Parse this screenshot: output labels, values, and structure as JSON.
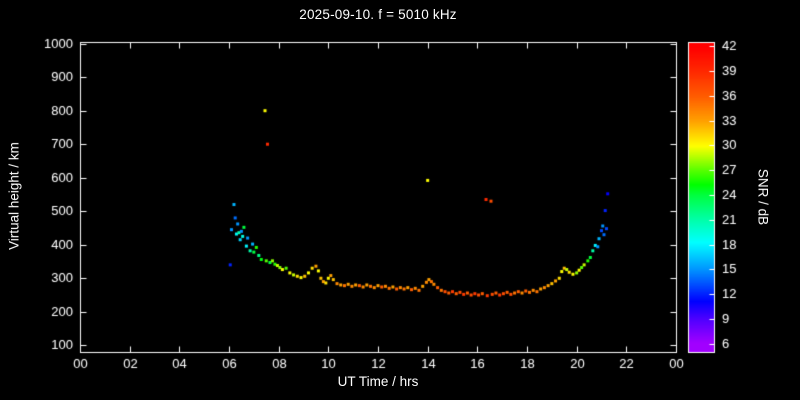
{
  "chart": {
    "title": "2025-09-10. f = 5010 kHz",
    "colors": {
      "background": "#000000",
      "foreground": "#ffffff"
    }
  },
  "chart_data": {
    "type": "scatter",
    "title": "2025-09-10. f = 5010 kHz",
    "xlabel": "UT Time / hrs",
    "ylabel": "Virtual height / km",
    "colorbar_label": "SNR / dB",
    "x_axis": {
      "min": 0,
      "max": 24,
      "tick_values": [
        0,
        2,
        4,
        6,
        8,
        10,
        12,
        14,
        16,
        18,
        20,
        22,
        24
      ],
      "tick_labels": [
        "00",
        "02",
        "04",
        "06",
        "08",
        "10",
        "12",
        "14",
        "16",
        "18",
        "20",
        "22",
        "00"
      ]
    },
    "y_axis": {
      "min": 80,
      "max": 1005,
      "tick_values": [
        100,
        200,
        300,
        400,
        500,
        600,
        700,
        800,
        900,
        1000
      ],
      "tick_labels": [
        "100",
        "200",
        "300",
        "400",
        "500",
        "600",
        "700",
        "800",
        "900",
        "1000"
      ]
    },
    "colorbar": {
      "min": 5,
      "max": 42.5,
      "tick_values": [
        6,
        9,
        12,
        15,
        18,
        21,
        24,
        27,
        30,
        33,
        36,
        39,
        42
      ],
      "tick_labels": [
        "6",
        "9",
        "12",
        "15",
        "18",
        "21",
        "24",
        "27",
        "30",
        "33",
        "36",
        "39",
        "42"
      ]
    },
    "colormap_hue_anchors": [
      [
        6,
        278
      ],
      [
        9,
        258
      ],
      [
        12,
        232
      ],
      [
        15,
        205
      ],
      [
        18,
        182
      ],
      [
        21,
        160
      ],
      [
        24,
        135
      ],
      [
        27,
        100
      ],
      [
        30,
        60
      ],
      [
        33,
        38
      ],
      [
        36,
        22
      ],
      [
        39,
        10
      ],
      [
        42,
        0
      ]
    ],
    "marker_size": 3,
    "points_format": [
      "ut_hours",
      "virtual_height_km",
      "snr_db"
    ],
    "points": [
      [
        6.05,
        340,
        12
      ],
      [
        6.1,
        445,
        15
      ],
      [
        6.2,
        520,
        16
      ],
      [
        6.25,
        480,
        14
      ],
      [
        6.3,
        432,
        18
      ],
      [
        6.35,
        462,
        15
      ],
      [
        6.4,
        436,
        21
      ],
      [
        6.45,
        415,
        17
      ],
      [
        6.5,
        440,
        15
      ],
      [
        6.55,
        425,
        19
      ],
      [
        6.6,
        452,
        24
      ],
      [
        6.7,
        396,
        18
      ],
      [
        6.75,
        420,
        15
      ],
      [
        6.85,
        382,
        21
      ],
      [
        6.95,
        402,
        16
      ],
      [
        7.0,
        378,
        24
      ],
      [
        7.1,
        392,
        26
      ],
      [
        7.2,
        368,
        22
      ],
      [
        7.3,
        356,
        25
      ],
      [
        7.45,
        800,
        30
      ],
      [
        7.5,
        352,
        27
      ],
      [
        7.55,
        700,
        39
      ],
      [
        7.65,
        347,
        24
      ],
      [
        7.75,
        352,
        28
      ],
      [
        7.85,
        342,
        26
      ],
      [
        7.95,
        338,
        29
      ],
      [
        8.05,
        332,
        28
      ],
      [
        8.15,
        326,
        30
      ],
      [
        8.3,
        330,
        27
      ],
      [
        8.45,
        316,
        30
      ],
      [
        8.6,
        310,
        29
      ],
      [
        8.75,
        306,
        31
      ],
      [
        8.9,
        302,
        30
      ],
      [
        9.05,
        306,
        32
      ],
      [
        9.2,
        316,
        30
      ],
      [
        9.35,
        330,
        31
      ],
      [
        9.5,
        336,
        33
      ],
      [
        9.6,
        322,
        30
      ],
      [
        9.7,
        300,
        32
      ],
      [
        9.8,
        290,
        33
      ],
      [
        9.9,
        286,
        31
      ],
      [
        10.0,
        300,
        30
      ],
      [
        10.1,
        308,
        33
      ],
      [
        10.2,
        296,
        32
      ],
      [
        10.35,
        284,
        34
      ],
      [
        10.5,
        280,
        33
      ],
      [
        10.65,
        278,
        35
      ],
      [
        10.8,
        282,
        33
      ],
      [
        10.95,
        276,
        34
      ],
      [
        11.1,
        280,
        33
      ],
      [
        11.25,
        278,
        36
      ],
      [
        11.4,
        274,
        34
      ],
      [
        11.55,
        280,
        33
      ],
      [
        11.7,
        276,
        35
      ],
      [
        11.85,
        272,
        34
      ],
      [
        12.0,
        278,
        33
      ],
      [
        12.15,
        274,
        36
      ],
      [
        12.3,
        276,
        34
      ],
      [
        12.45,
        270,
        35
      ],
      [
        12.6,
        274,
        33
      ],
      [
        12.75,
        268,
        36
      ],
      [
        12.9,
        272,
        34
      ],
      [
        13.05,
        268,
        35
      ],
      [
        13.2,
        272,
        33
      ],
      [
        13.35,
        266,
        36
      ],
      [
        13.5,
        270,
        34
      ],
      [
        13.65,
        264,
        35
      ],
      [
        13.8,
        276,
        33
      ],
      [
        13.95,
        288,
        34
      ],
      [
        14.0,
        592,
        30
      ],
      [
        14.05,
        296,
        33
      ],
      [
        14.15,
        290,
        35
      ],
      [
        14.25,
        282,
        34
      ],
      [
        14.4,
        272,
        36
      ],
      [
        14.55,
        264,
        35
      ],
      [
        14.7,
        260,
        37
      ],
      [
        14.85,
        256,
        36
      ],
      [
        15.0,
        260,
        38
      ],
      [
        15.15,
        254,
        36
      ],
      [
        15.3,
        258,
        37
      ],
      [
        15.45,
        252,
        38
      ],
      [
        15.6,
        256,
        36
      ],
      [
        15.75,
        250,
        37
      ],
      [
        15.9,
        254,
        38
      ],
      [
        16.05,
        250,
        37
      ],
      [
        16.2,
        254,
        36
      ],
      [
        16.35,
        535,
        39
      ],
      [
        16.4,
        248,
        38
      ],
      [
        16.55,
        530,
        37
      ],
      [
        16.6,
        252,
        37
      ],
      [
        16.75,
        256,
        36
      ],
      [
        16.9,
        250,
        38
      ],
      [
        17.05,
        254,
        37
      ],
      [
        17.2,
        258,
        36
      ],
      [
        17.35,
        252,
        37
      ],
      [
        17.5,
        256,
        35
      ],
      [
        17.65,
        260,
        36
      ],
      [
        17.8,
        256,
        34
      ],
      [
        17.95,
        262,
        36
      ],
      [
        18.1,
        258,
        35
      ],
      [
        18.25,
        264,
        34
      ],
      [
        18.4,
        260,
        35
      ],
      [
        18.55,
        268,
        33
      ],
      [
        18.7,
        272,
        34
      ],
      [
        18.85,
        278,
        33
      ],
      [
        19.0,
        284,
        32
      ],
      [
        19.15,
        292,
        33
      ],
      [
        19.3,
        300,
        31
      ],
      [
        19.4,
        320,
        30
      ],
      [
        19.5,
        330,
        32
      ],
      [
        19.6,
        326,
        29
      ],
      [
        19.7,
        318,
        31
      ],
      [
        19.85,
        312,
        30
      ],
      [
        20.0,
        316,
        28
      ],
      [
        20.1,
        324,
        30
      ],
      [
        20.2,
        332,
        27
      ],
      [
        20.3,
        340,
        29
      ],
      [
        20.45,
        352,
        26
      ],
      [
        20.55,
        362,
        24
      ],
      [
        20.65,
        382,
        21
      ],
      [
        20.75,
        398,
        18
      ],
      [
        20.85,
        394,
        15
      ],
      [
        20.9,
        418,
        16
      ],
      [
        21.0,
        442,
        13
      ],
      [
        21.05,
        456,
        15
      ],
      [
        21.1,
        430,
        14
      ],
      [
        21.15,
        502,
        12
      ],
      [
        21.2,
        448,
        13
      ],
      [
        21.25,
        552,
        11
      ]
    ]
  }
}
